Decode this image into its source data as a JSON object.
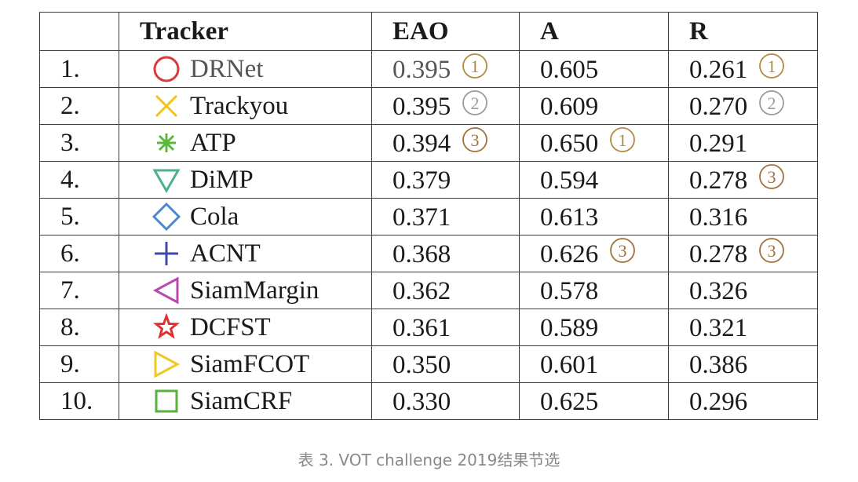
{
  "table": {
    "headers": [
      "",
      "Tracker",
      "EAO",
      "A",
      "R"
    ],
    "rows": [
      {
        "idx": "1.",
        "name": "DRNet",
        "marker": "circle-icon",
        "color": "#d93a3a",
        "eao": "0.395",
        "a": "0.605",
        "r": "0.261",
        "eao_rank": "1",
        "a_rank": "",
        "r_rank": "1"
      },
      {
        "idx": "2.",
        "name": "Trackyou",
        "marker": "x-cross-icon",
        "color": "#f2c41b",
        "eao": "0.395",
        "a": "0.609",
        "r": "0.270",
        "eao_rank": "2",
        "a_rank": "",
        "r_rank": "2"
      },
      {
        "idx": "3.",
        "name": "ATP",
        "marker": "asterisk-icon",
        "color": "#5cb83a",
        "eao": "0.394",
        "a": "0.650",
        "r": "0.291",
        "eao_rank": "3",
        "a_rank": "1",
        "r_rank": ""
      },
      {
        "idx": "4.",
        "name": "DiMP",
        "marker": "triangle-down-icon",
        "color": "#4bb08e",
        "eao": "0.379",
        "a": "0.594",
        "r": "0.278",
        "eao_rank": "",
        "a_rank": "",
        "r_rank": "3"
      },
      {
        "idx": "5.",
        "name": "Cola",
        "marker": "diamond-icon",
        "color": "#4a8ad0",
        "eao": "0.371",
        "a": "0.613",
        "r": "0.316",
        "eao_rank": "",
        "a_rank": "",
        "r_rank": ""
      },
      {
        "idx": "6.",
        "name": "ACNT",
        "marker": "plus-icon",
        "color": "#3d4aa8",
        "eao": "0.368",
        "a": "0.626",
        "r": "0.278",
        "eao_rank": "",
        "a_rank": "3",
        "r_rank": "3"
      },
      {
        "idx": "7.",
        "name": "SiamMargin",
        "marker": "triangle-left-icon",
        "color": "#b848b0",
        "eao": "0.362",
        "a": "0.578",
        "r": "0.326",
        "eao_rank": "",
        "a_rank": "",
        "r_rank": ""
      },
      {
        "idx": "8.",
        "name": "DCFST",
        "marker": "star-icon",
        "color": "#e03030",
        "eao": "0.361",
        "a": "0.589",
        "r": "0.321",
        "eao_rank": "",
        "a_rank": "",
        "r_rank": ""
      },
      {
        "idx": "9.",
        "name": "SiamFCOT",
        "marker": "triangle-right-icon",
        "color": "#f0c820",
        "eao": "0.350",
        "a": "0.601",
        "r": "0.386",
        "eao_rank": "",
        "a_rank": "",
        "r_rank": ""
      },
      {
        "idx": "10.",
        "name": "SiamCRF",
        "marker": "square-icon",
        "color": "#58b23c",
        "eao": "0.330",
        "a": "0.625",
        "r": "0.296",
        "eao_rank": "",
        "a_rank": "",
        "r_rank": ""
      }
    ]
  },
  "rank_colors": {
    "1": "#b08a3e",
    "2": "#9a9a9a",
    "3": "#a0703a"
  },
  "caption": "表 3. VOT challenge 2019结果节选"
}
